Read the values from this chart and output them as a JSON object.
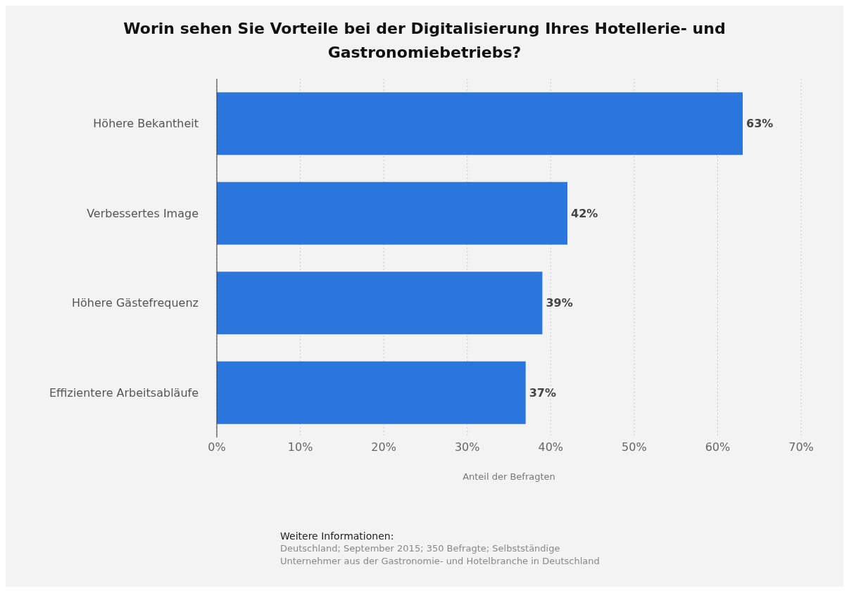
{
  "chart_data": {
    "type": "bar",
    "orientation": "horizontal",
    "title": "Worin sehen Sie Vorteile bei der Digitalisierung Ihres Hotellerie- und Gastronomiebetriebs?",
    "categories": [
      "Höhere Bekantheit",
      "Verbessertes Image",
      "Höhere Gästefrequenz",
      "Effizientere Arbeitsabläufe"
    ],
    "values": [
      63,
      42,
      39,
      37
    ],
    "value_labels": [
      "63%",
      "42%",
      "39%",
      "37%"
    ],
    "color": "#2a76dd",
    "xlim": [
      0,
      70
    ],
    "xticks": [
      {
        "value": 0,
        "label": "0%"
      },
      {
        "value": 10,
        "label": "10%"
      },
      {
        "value": 20,
        "label": "20%"
      },
      {
        "value": 30,
        "label": "30%"
      },
      {
        "value": 40,
        "label": "40%"
      },
      {
        "value": 50,
        "label": "50%"
      },
      {
        "value": 60,
        "label": "60%"
      },
      {
        "value": 70,
        "label": "70%"
      }
    ],
    "xlabel": "Anteil der Befragten",
    "grid": "x",
    "legend": false,
    "annotations": [
      "Weitere Informationen:",
      "Deutschland; September 2015; 350 Befragte; Selbstständige Unternehmer aus der Gastronomie- und Hotelbranche in Deutschland"
    ]
  }
}
